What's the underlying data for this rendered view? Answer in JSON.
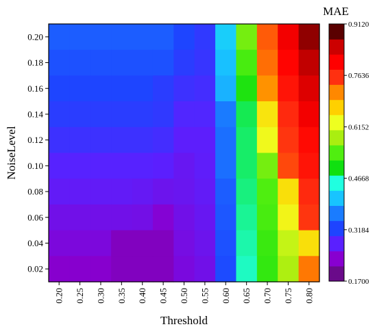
{
  "chart_data": {
    "type": "heatmap",
    "title": "",
    "xlabel": "Threshold",
    "ylabel": "NoiseLevel",
    "x_ticks": [
      "0.20",
      "0.25",
      "0.30",
      "0.35",
      "0.40",
      "0.45",
      "0.50",
      "0.55",
      "0.60",
      "0.65",
      "0.70",
      "0.75",
      "0.80"
    ],
    "y_ticks": [
      "0.20",
      "0.18",
      "0.16",
      "0.14",
      "0.12",
      "0.10",
      "0.08",
      "0.06",
      "0.04",
      "0.02"
    ],
    "x": [
      0.2,
      0.25,
      0.3,
      0.35,
      0.4,
      0.45,
      0.5,
      0.55,
      0.6,
      0.65,
      0.7,
      0.75,
      0.8
    ],
    "y": [
      0.2,
      0.18,
      0.16,
      0.14,
      0.12,
      0.1,
      0.08,
      0.06,
      0.04,
      0.02
    ],
    "z": [
      [
        0.33,
        0.33,
        0.33,
        0.33,
        0.33,
        0.33,
        0.31,
        0.295,
        0.41,
        0.56,
        0.75,
        0.83,
        0.89
      ],
      [
        0.32,
        0.32,
        0.32,
        0.32,
        0.32,
        0.32,
        0.3,
        0.29,
        0.4,
        0.535,
        0.74,
        0.815,
        0.87
      ],
      [
        0.31,
        0.31,
        0.31,
        0.31,
        0.31,
        0.3,
        0.285,
        0.28,
        0.39,
        0.505,
        0.72,
        0.8,
        0.85
      ],
      [
        0.3,
        0.3,
        0.3,
        0.3,
        0.3,
        0.295,
        0.27,
        0.27,
        0.355,
        0.48,
        0.66,
        0.78,
        0.83
      ],
      [
        0.285,
        0.285,
        0.285,
        0.285,
        0.285,
        0.28,
        0.26,
        0.26,
        0.345,
        0.475,
        0.64,
        0.77,
        0.81
      ],
      [
        0.265,
        0.265,
        0.265,
        0.265,
        0.265,
        0.262,
        0.25,
        0.258,
        0.345,
        0.475,
        0.56,
        0.76,
        0.8
      ],
      [
        0.255,
        0.255,
        0.255,
        0.255,
        0.252,
        0.245,
        0.248,
        0.255,
        0.33,
        0.47,
        0.54,
        0.665,
        0.78
      ],
      [
        0.24,
        0.24,
        0.24,
        0.24,
        0.238,
        0.22,
        0.24,
        0.25,
        0.325,
        0.465,
        0.535,
        0.645,
        0.77
      ],
      [
        0.228,
        0.228,
        0.228,
        0.205,
        0.205,
        0.205,
        0.235,
        0.245,
        0.32,
        0.46,
        0.525,
        0.605,
        0.665
      ],
      [
        0.215,
        0.215,
        0.215,
        0.205,
        0.205,
        0.205,
        0.23,
        0.24,
        0.315,
        0.455,
        0.52,
        0.59,
        0.735
      ]
    ],
    "colorbar": {
      "title": "MAE",
      "min": 0.17,
      "max": 0.912,
      "tick_labels": [
        "0.9120",
        "0.7636",
        "0.6152",
        "0.4668",
        "0.3184",
        "0.1700"
      ],
      "tick_values": [
        0.912,
        0.7636,
        0.6152,
        0.4668,
        0.3184,
        0.17
      ],
      "colors": [
        "#6a0a8a",
        "#8800d0",
        "#5a20ff",
        "#1e44ff",
        "#1a7cff",
        "#18c4ff",
        "#20ffe0",
        "#10e010",
        "#50ee10",
        "#aaee10",
        "#eeff20",
        "#ffd000",
        "#ff8800",
        "#ff3010",
        "#ff0000",
        "#cc0000",
        "#5a0000"
      ]
    },
    "grid": false,
    "legend": "colorbar-right"
  }
}
